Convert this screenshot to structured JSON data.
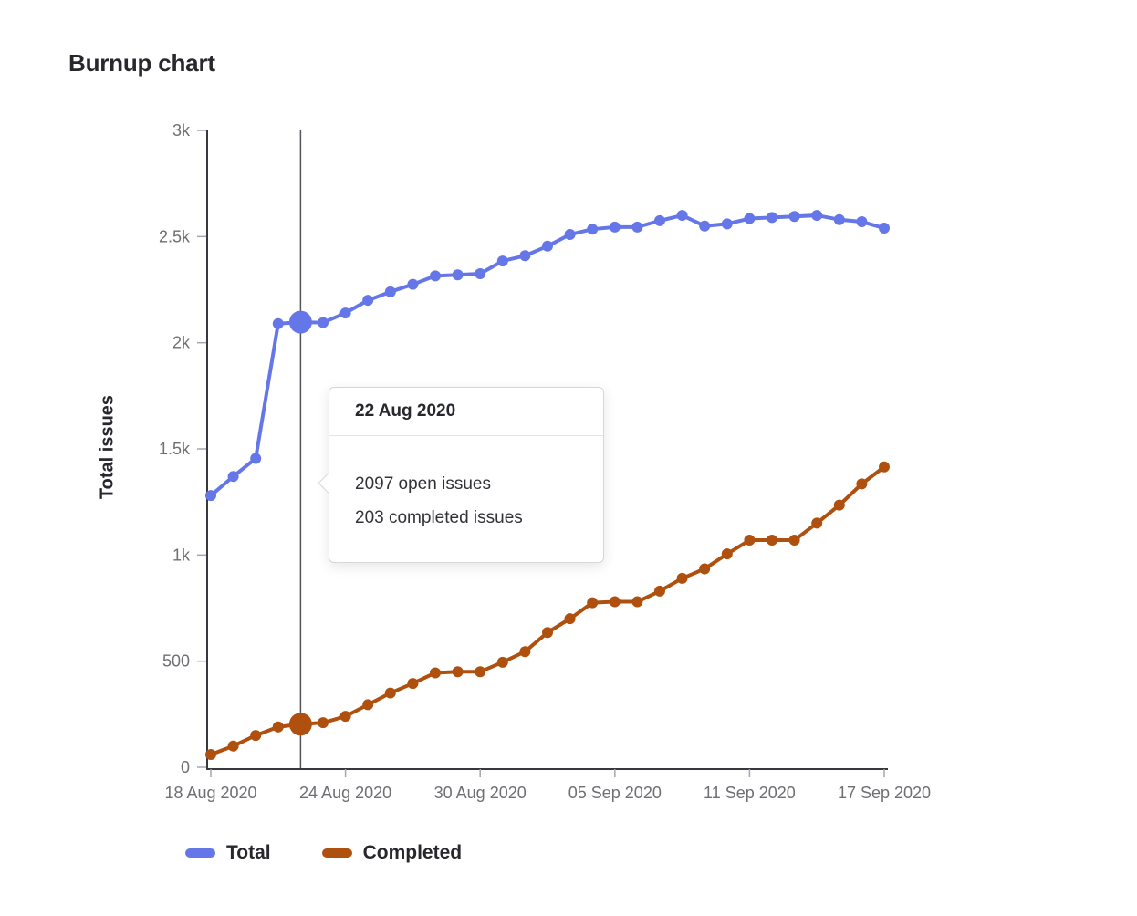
{
  "page": {
    "title": "Burnup chart"
  },
  "colors": {
    "axis": "#39383f",
    "tick_mark": "#a7a7ab",
    "tick_label": "#6e6e73",
    "hover_line": "#55545a",
    "text": "#28272d",
    "tooltip_border": "#d7d7db",
    "total_series": "#6577e8",
    "completed_series": "#b0500e"
  },
  "chart_data": {
    "type": "line",
    "title": "Burnup chart",
    "xlabel": "",
    "ylabel": "Total issues",
    "ylim": [
      0,
      3000
    ],
    "grid": false,
    "legend_position": "bottom-left",
    "x_labels": [
      "18 Aug 2020",
      "19 Aug 2020",
      "20 Aug 2020",
      "21 Aug 2020",
      "22 Aug 2020",
      "23 Aug 2020",
      "24 Aug 2020",
      "25 Aug 2020",
      "26 Aug 2020",
      "27 Aug 2020",
      "28 Aug 2020",
      "29 Aug 2020",
      "30 Aug 2020",
      "31 Aug 2020",
      "01 Sep 2020",
      "02 Sep 2020",
      "03 Sep 2020",
      "04 Sep 2020",
      "05 Sep 2020",
      "06 Sep 2020",
      "07 Sep 2020",
      "08 Sep 2020",
      "09 Sep 2020",
      "10 Sep 2020",
      "11 Sep 2020",
      "12 Sep 2020",
      "13 Sep 2020",
      "14 Sep 2020",
      "15 Sep 2020",
      "16 Sep 2020",
      "17 Sep 2020"
    ],
    "x_ticks": [
      {
        "index": 0,
        "label": "18 Aug 2020"
      },
      {
        "index": 6,
        "label": "24 Aug 2020"
      },
      {
        "index": 12,
        "label": "30 Aug 2020"
      },
      {
        "index": 18,
        "label": "05 Sep 2020"
      },
      {
        "index": 24,
        "label": "11 Sep 2020"
      },
      {
        "index": 30,
        "label": "17 Sep 2020"
      }
    ],
    "y_ticks": [
      {
        "value": 3000,
        "label": "3k"
      },
      {
        "value": 2500,
        "label": "2.5k"
      },
      {
        "value": 2000,
        "label": "2k"
      },
      {
        "value": 1500,
        "label": "1.5k"
      },
      {
        "value": 1000,
        "label": "1k"
      },
      {
        "value": 500,
        "label": "500"
      },
      {
        "value": 0,
        "label": "0"
      }
    ],
    "series": [
      {
        "name": "Total",
        "color": "#6577e8",
        "values": [
          1280,
          1370,
          1455,
          2090,
          2097,
          2095,
          2140,
          2200,
          2240,
          2275,
          2315,
          2320,
          2325,
          2385,
          2410,
          2455,
          2510,
          2535,
          2545,
          2545,
          2575,
          2600,
          2550,
          2560,
          2585,
          2590,
          2595,
          2600,
          2580,
          2570,
          2540
        ]
      },
      {
        "name": "Completed",
        "color": "#b0500e",
        "values": [
          60,
          100,
          150,
          190,
          203,
          210,
          240,
          295,
          350,
          395,
          445,
          450,
          450,
          495,
          545,
          635,
          700,
          775,
          780,
          780,
          830,
          890,
          935,
          1005,
          1070,
          1070,
          1070,
          1150,
          1235,
          1335,
          1415
        ]
      }
    ],
    "highlight": {
      "index": 4,
      "date": "22 Aug 2020"
    }
  },
  "tooltip": {
    "title": "22 Aug 2020",
    "lines": [
      "2097 open issues",
      "203 completed issues"
    ]
  }
}
